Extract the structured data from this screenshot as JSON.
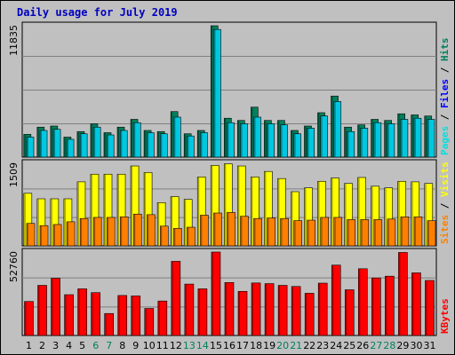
{
  "title": "Daily usage for July 2019",
  "chart_data": [
    {
      "type": "bar",
      "panel": "hits-files-pages",
      "categories": [
        "1",
        "2",
        "3",
        "4",
        "5",
        "6",
        "7",
        "8",
        "9",
        "10",
        "11",
        "12",
        "13",
        "14",
        "15",
        "16",
        "17",
        "18",
        "19",
        "20",
        "21",
        "22",
        "23",
        "24",
        "25",
        "26",
        "27",
        "28",
        "29",
        "30",
        "31"
      ],
      "ymax_label": "11835",
      "ylim": [
        0,
        11835
      ],
      "legend": [
        {
          "text": "Pages",
          "color": "#00e0e0"
        },
        {
          "text": " / ",
          "color": "#000000"
        },
        {
          "text": "Files",
          "color": "#0000ff"
        },
        {
          "text": " / ",
          "color": "#000000"
        },
        {
          "text": "Hits",
          "color": "#00805c"
        }
      ],
      "series": [
        {
          "name": "Hits",
          "color": "#00805c",
          "values": [
            2050,
            2700,
            2800,
            1800,
            2300,
            3000,
            2200,
            2700,
            3400,
            2400,
            2300,
            4100,
            2100,
            2400,
            11835,
            3500,
            3300,
            4500,
            3300,
            3300,
            2400,
            2800,
            4000,
            5500,
            2700,
            2900,
            3400,
            3300,
            3900,
            3800,
            3700
          ]
        },
        {
          "name": "Files",
          "color": "#00c8e0",
          "values": [
            1800,
            2400,
            2500,
            1600,
            2100,
            2700,
            2000,
            2400,
            3100,
            2200,
            2100,
            3600,
            1900,
            2200,
            11500,
            3100,
            3000,
            3600,
            3000,
            2900,
            2100,
            2600,
            3700,
            5000,
            2300,
            2600,
            3100,
            3000,
            3400,
            3500,
            3400
          ]
        },
        {
          "name": "Pages",
          "color": "#00e0e0",
          "values": [
            0,
            0,
            0,
            0,
            0,
            0,
            0,
            0,
            0,
            0,
            0,
            0,
            0,
            0,
            0,
            0,
            0,
            0,
            0,
            0,
            0,
            0,
            0,
            0,
            0,
            0,
            0,
            0,
            0,
            0,
            0
          ]
        }
      ]
    },
    {
      "type": "bar",
      "panel": "visits-sites",
      "categories": [
        "1",
        "2",
        "3",
        "4",
        "5",
        "6",
        "7",
        "8",
        "9",
        "10",
        "11",
        "12",
        "13",
        "14",
        "15",
        "16",
        "17",
        "18",
        "19",
        "20",
        "21",
        "22",
        "23",
        "24",
        "25",
        "26",
        "27",
        "28",
        "29",
        "30",
        "31"
      ],
      "ymax_label": "1509",
      "ylim": [
        0,
        1509
      ],
      "legend": [
        {
          "text": "Sites",
          "color": "#ff8000"
        },
        {
          "text": " / ",
          "color": "#000000"
        },
        {
          "text": "Visits",
          "color": "#ffff00"
        }
      ],
      "series": [
        {
          "name": "Visits",
          "color": "#ffff00",
          "values": [
            960,
            860,
            860,
            860,
            1170,
            1310,
            1310,
            1310,
            1460,
            1340,
            790,
            900,
            850,
            1260,
            1470,
            1500,
            1460,
            1260,
            1360,
            1230,
            990,
            1060,
            1180,
            1240,
            1140,
            1250,
            1090,
            1060,
            1180,
            1170,
            1140
          ]
        },
        {
          "name": "Sites",
          "color": "#ff8000",
          "values": [
            410,
            370,
            390,
            440,
            500,
            520,
            520,
            530,
            580,
            570,
            360,
            320,
            340,
            560,
            600,
            610,
            540,
            500,
            510,
            500,
            460,
            470,
            520,
            520,
            480,
            480,
            480,
            490,
            530,
            530,
            460
          ]
        }
      ]
    },
    {
      "type": "bar",
      "panel": "kbytes",
      "categories": [
        "1",
        "2",
        "3",
        "4",
        "5",
        "6",
        "7",
        "8",
        "9",
        "10",
        "11",
        "12",
        "13",
        "14",
        "15",
        "16",
        "17",
        "18",
        "19",
        "20",
        "21",
        "22",
        "23",
        "24",
        "25",
        "26",
        "27",
        "28",
        "29",
        "30",
        "31"
      ],
      "ymax_label": "52760",
      "ylim": [
        0,
        52760
      ],
      "legend": [
        {
          "text": "KBytes",
          "color": "#ff0000"
        }
      ],
      "series": [
        {
          "name": "KBytes",
          "color": "#ff0000",
          "values": [
            21500,
            31700,
            36200,
            25800,
            29500,
            27100,
            13900,
            25300,
            25000,
            17100,
            21800,
            46900,
            32500,
            29500,
            52760,
            33500,
            27900,
            33200,
            32800,
            31700,
            31000,
            26700,
            33100,
            44500,
            28900,
            42200,
            36400,
            37500,
            52500,
            39600,
            34800
          ]
        }
      ]
    }
  ],
  "weekend_days": [
    "6",
    "7",
    "13",
    "14",
    "20",
    "21",
    "27",
    "28"
  ],
  "colors": {
    "background": "#c0c0c0",
    "title": "#0000c0",
    "weekday_label": "#000000",
    "weekend_label": "#00805c"
  }
}
